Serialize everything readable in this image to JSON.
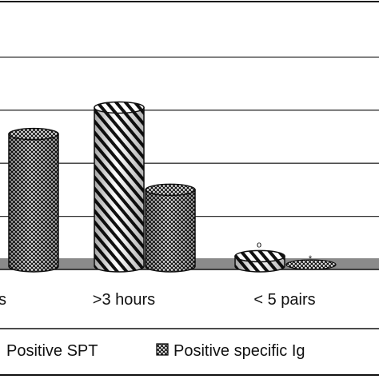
{
  "chart_data": {
    "type": "bar",
    "title": "",
    "xlabel": "",
    "ylabel": "",
    "ylim": [
      0,
      100
    ],
    "grid": true,
    "legend_position": "bottom",
    "categories": [
      "s",
      ">3 hours",
      "< 5 pairs"
    ],
    "series": [
      {
        "name": "Positive SPT",
        "pattern": "diagonal-stripes",
        "values": [
          null,
          61,
          5
        ]
      },
      {
        "name": "Positive specific Ig",
        "pattern": "crosshatch",
        "values": [
          51,
          30,
          0
        ]
      }
    ],
    "annotations": [
      {
        "text": "o",
        "category": "< 5 pairs",
        "series": "Positive SPT"
      },
      {
        "text": "*",
        "category": "< 5 pairs",
        "series": "Positive specific Ig"
      }
    ],
    "colors": {
      "bar_fill": "#ffffff",
      "ink": "#111111",
      "floor": "#8a8a8a",
      "grid": "#333333"
    }
  }
}
